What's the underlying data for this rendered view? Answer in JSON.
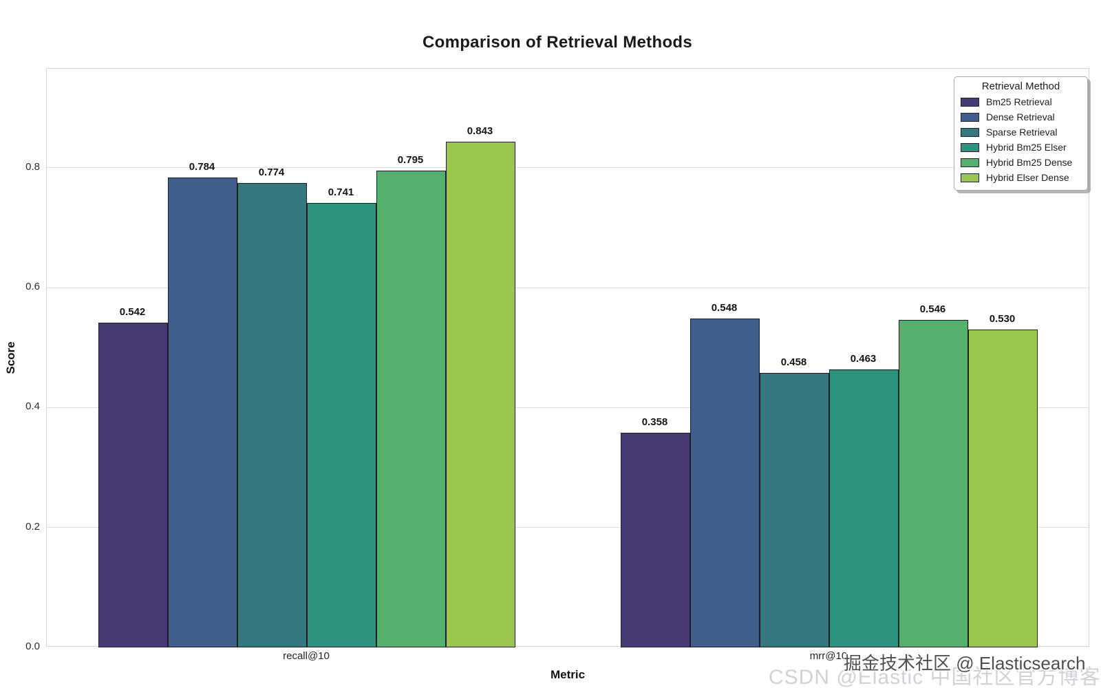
{
  "chart_data": {
    "type": "bar",
    "title": "Comparison of Retrieval Methods",
    "xlabel": "Metric",
    "ylabel": "Score",
    "categories": [
      "recall@10",
      "mrr@10"
    ],
    "series": [
      {
        "name": "Bm25 Retrieval",
        "color": "#483a72",
        "values": [
          0.542,
          0.358
        ]
      },
      {
        "name": "Dense Retrieval",
        "color": "#3f5e8c",
        "values": [
          0.784,
          0.548
        ]
      },
      {
        "name": "Sparse Retrieval",
        "color": "#35787f",
        "values": [
          0.774,
          0.458
        ]
      },
      {
        "name": "Hybrid Bm25 Elser",
        "color": "#2e937e",
        "values": [
          0.741,
          0.463
        ]
      },
      {
        "name": "Hybrid Bm25 Dense",
        "color": "#55b06e",
        "values": [
          0.795,
          0.546
        ]
      },
      {
        "name": "Hybrid Elser Dense",
        "color": "#9cc74e",
        "values": [
          0.843,
          0.53
        ]
      }
    ],
    "ylim": [
      0,
      0.965
    ],
    "yticks": [
      0.0,
      0.2,
      0.4,
      0.6,
      0.8
    ],
    "grid": "horizontal",
    "legend_title": "Retrieval Method",
    "legend_position": "upper right",
    "bar_edge_color": "#1d1d26",
    "value_label_decimals": 3,
    "value_labels": {
      "recall@10": [
        "0.542",
        "0.784",
        "0.774",
        "0.741",
        "0.795",
        "0.843"
      ],
      "mrr@10": [
        "0.358",
        "0.548",
        "0.458",
        "0.463",
        "0.546",
        "0.530"
      ]
    }
  },
  "watermarks": {
    "light": "CSDN @Elastic 中国社区官方博客",
    "dark": "掘金技术社区 @ Elasticsearch"
  }
}
